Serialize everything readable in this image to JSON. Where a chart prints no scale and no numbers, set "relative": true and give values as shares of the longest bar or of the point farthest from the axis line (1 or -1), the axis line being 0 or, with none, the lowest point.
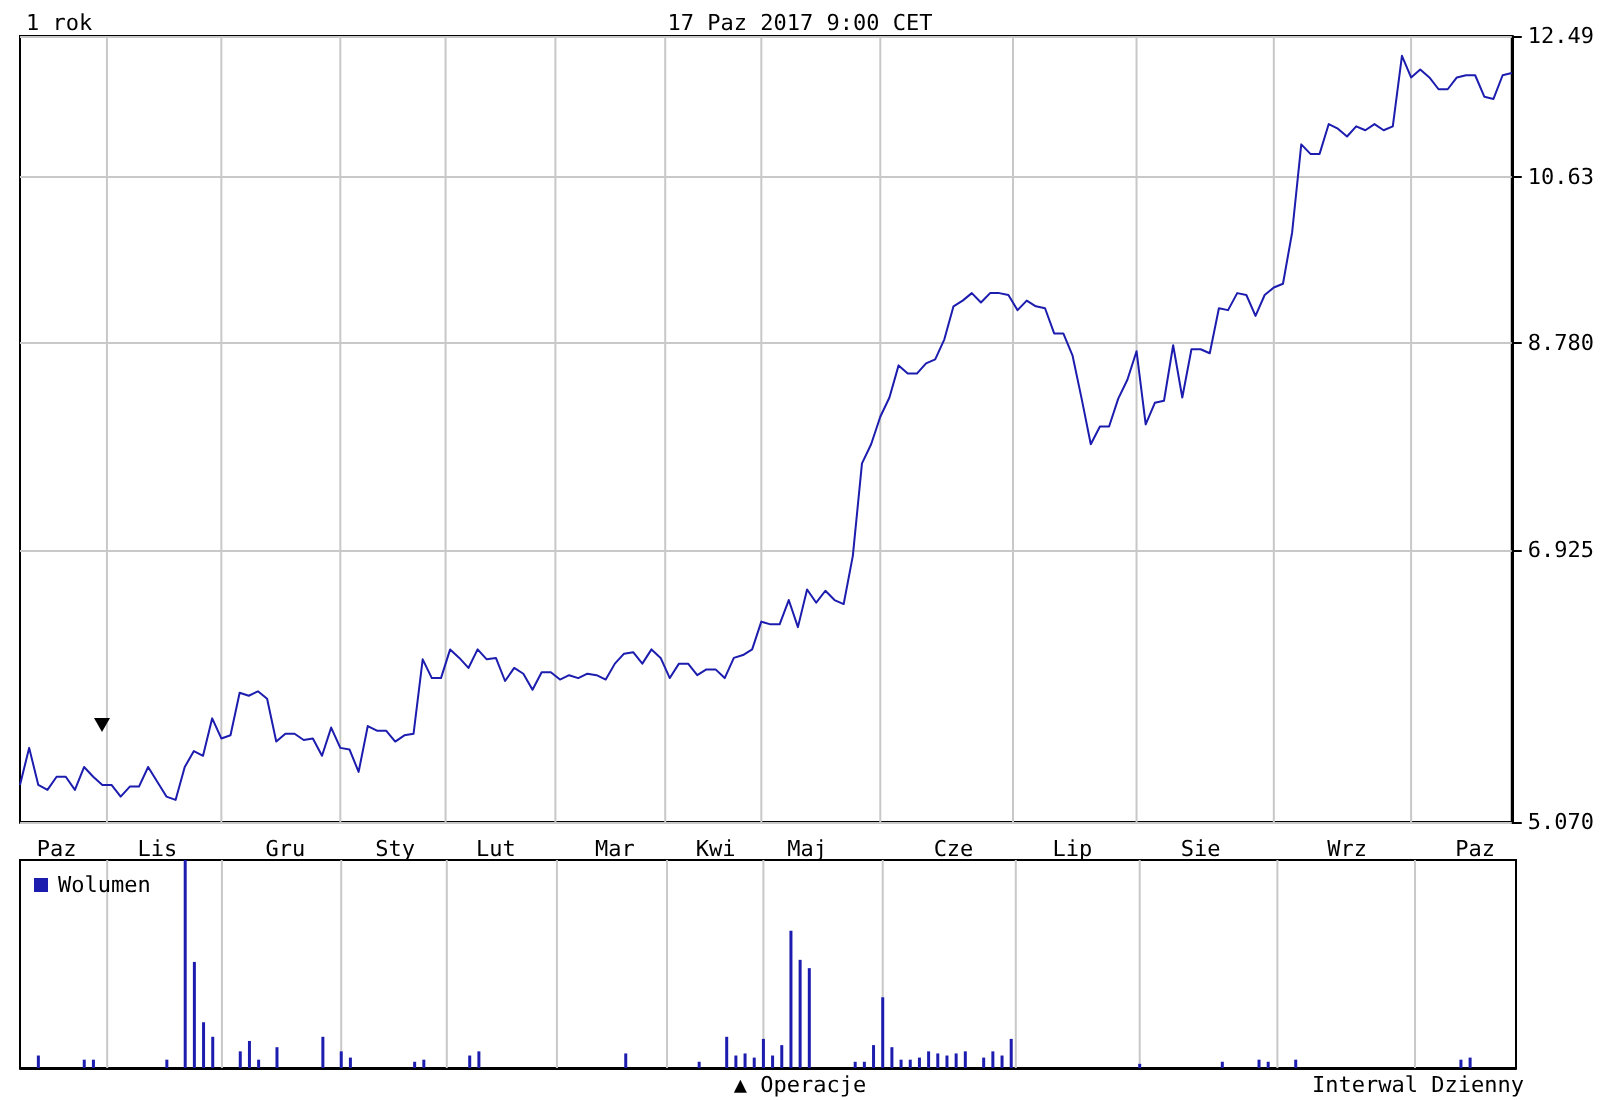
{
  "chart_data": [
    {
      "type": "line",
      "title": "1 rok",
      "subtitle": "17 Paz 2017 9:00 CET",
      "color": "#1c1cae",
      "log": true,
      "grid": true,
      "marker": "none",
      "categories": [
        null,
        null,
        null,
        null,
        "Paz",
        null,
        null,
        null,
        null,
        null,
        null,
        null,
        null,
        null,
        null,
        "Lis",
        null,
        null,
        null,
        null,
        null,
        null,
        null,
        null,
        null,
        null,
        null,
        null,
        null,
        "Gru",
        null,
        null,
        null,
        null,
        null,
        null,
        null,
        null,
        null,
        null,
        null,
        "Sty",
        null,
        null,
        null,
        null,
        null,
        null,
        null,
        null,
        null,
        null,
        "Lut",
        null,
        null,
        null,
        null,
        null,
        null,
        null,
        null,
        null,
        null,
        null,
        null,
        "Mar",
        null,
        null,
        null,
        null,
        null,
        null,
        null,
        null,
        null,
        null,
        "Kwi",
        null,
        null,
        null,
        null,
        null,
        null,
        null,
        null,
        null,
        "Maj",
        null,
        null,
        null,
        null,
        null,
        null,
        null,
        null,
        null,
        null,
        null,
        null,
        null,
        null,
        null,
        "Cze",
        null,
        null,
        null,
        null,
        null,
        null,
        null,
        null,
        null,
        null,
        null,
        null,
        "Lip",
        null,
        null,
        null,
        null,
        null,
        null,
        null,
        null,
        null,
        null,
        null,
        null,
        null,
        "Sie",
        null,
        null,
        null,
        null,
        null,
        null,
        null,
        null,
        null,
        null,
        null,
        null,
        null,
        null,
        null,
        "Wrz",
        null,
        null,
        null,
        null,
        null,
        null,
        null,
        null,
        null,
        null,
        null,
        null,
        null,
        "Paz",
        null,
        null,
        null,
        null
      ],
      "values": [
        5.29,
        5.52,
        5.29,
        5.26,
        5.34,
        5.34,
        5.26,
        5.4,
        5.34,
        5.29,
        5.29,
        5.22,
        5.28,
        5.28,
        5.4,
        5.31,
        5.22,
        5.2,
        5.4,
        5.5,
        5.47,
        5.71,
        5.58,
        5.6,
        5.88,
        5.86,
        5.89,
        5.84,
        5.56,
        5.61,
        5.61,
        5.57,
        5.58,
        5.47,
        5.65,
        5.52,
        5.51,
        5.37,
        5.66,
        5.63,
        5.63,
        5.56,
        5.6,
        5.61,
        6.11,
        5.98,
        5.98,
        6.18,
        6.12,
        6.05,
        6.18,
        6.11,
        6.12,
        5.96,
        6.05,
        6.01,
        5.9,
        6.02,
        6.02,
        5.97,
        6.0,
        5.98,
        6.01,
        6.0,
        5.97,
        6.08,
        6.15,
        6.16,
        6.08,
        6.18,
        6.12,
        5.98,
        6.08,
        6.08,
        6.0,
        6.04,
        6.04,
        5.98,
        6.12,
        6.14,
        6.18,
        6.38,
        6.36,
        6.36,
        6.54,
        6.34,
        6.62,
        6.52,
        6.61,
        6.54,
        6.51,
        6.88,
        7.65,
        7.82,
        8.07,
        8.25,
        8.56,
        8.48,
        8.48,
        8.58,
        8.62,
        8.82,
        9.16,
        9.22,
        9.3,
        9.2,
        9.3,
        9.3,
        9.28,
        9.12,
        9.22,
        9.16,
        9.14,
        8.88,
        8.88,
        8.66,
        8.24,
        7.82,
        7.98,
        7.98,
        8.24,
        8.42,
        8.7,
        8.0,
        8.2,
        8.22,
        8.76,
        8.25,
        8.72,
        8.72,
        8.68,
        9.14,
        9.12,
        9.3,
        9.28,
        9.06,
        9.28,
        9.36,
        9.4,
        9.97,
        11.03,
        10.91,
        10.91,
        11.29,
        11.23,
        11.13,
        11.26,
        11.21,
        11.29,
        11.21,
        11.26,
        12.21,
        11.91,
        12.02,
        11.91,
        11.75,
        11.75,
        11.91,
        11.94,
        11.94,
        11.65,
        11.62,
        11.94,
        11.97
      ],
      "ylim": [
        5.07,
        12.49
      ],
      "yticks": [
        {
          "value": 5.07,
          "label": "5.070"
        },
        {
          "value": 6.925,
          "label": "6.925"
        },
        {
          "value": 8.78,
          "label": "8.780"
        },
        10.63,
        12.49
      ]
    },
    {
      "type": "bar",
      "relative": true,
      "legend": "top left",
      "grid": "x",
      "annotations": [
        "▲ Operacje",
        "Interwal Dzienny"
      ],
      "categories": [
        null,
        null,
        null,
        null,
        null,
        null,
        null,
        null,
        null,
        null,
        null,
        null,
        null,
        null,
        null,
        null,
        null,
        null,
        null,
        null,
        null,
        null,
        null,
        null,
        null,
        null,
        null,
        null,
        null,
        null,
        null,
        null,
        null,
        null,
        null,
        null,
        null,
        null,
        null,
        null,
        null,
        null,
        null,
        null,
        null,
        null,
        null,
        null,
        null,
        null,
        null,
        null,
        null,
        null,
        null,
        null,
        null,
        null,
        null,
        null,
        null,
        null,
        null,
        null,
        null,
        null,
        null,
        null,
        null,
        null,
        null,
        null,
        null,
        null,
        null,
        null,
        null,
        null,
        null,
        null,
        null,
        null,
        null,
        null,
        null,
        null,
        null,
        null,
        null,
        null,
        null,
        null,
        null,
        null,
        null,
        null,
        null,
        null,
        null,
        null,
        null,
        null,
        null,
        null,
        null,
        null,
        null,
        null,
        null,
        null,
        null,
        null,
        null,
        null,
        null,
        null,
        null,
        null,
        null,
        null,
        null,
        null,
        null,
        null,
        null,
        null,
        null,
        null,
        null,
        null,
        null,
        null,
        null,
        null,
        null,
        null,
        null,
        null,
        null,
        null,
        null,
        null,
        null,
        null,
        null,
        null,
        null,
        null,
        null,
        null,
        null,
        null,
        null,
        null,
        null,
        null,
        null,
        null,
        null,
        null,
        null,
        null,
        null,
        null
      ],
      "series": [
        {
          "name": "Wolumen",
          "color": "#1c1cae",
          "values": [
            null,
            null,
            0.06,
            null,
            null,
            null,
            null,
            0.04,
            0.04,
            null,
            null,
            null,
            null,
            null,
            null,
            null,
            0.04,
            null,
            1,
            0.51,
            0.22,
            0.15,
            null,
            null,
            0.08,
            0.13,
            0.04,
            null,
            0.1,
            null,
            null,
            null,
            null,
            0.15,
            null,
            0.08,
            0.05,
            null,
            null,
            null,
            null,
            null,
            null,
            0.03,
            0.04,
            null,
            null,
            null,
            null,
            0.06,
            0.08,
            null,
            null,
            null,
            null,
            null,
            null,
            null,
            null,
            null,
            null,
            null,
            null,
            null,
            null,
            null,
            0.07,
            null,
            null,
            null,
            null,
            null,
            null,
            null,
            0.03,
            null,
            null,
            0.15,
            0.06,
            0.07,
            0.05,
            0.14,
            0.06,
            0.11,
            0.66,
            0.52,
            0.48,
            null,
            null,
            null,
            null,
            0.03,
            0.03,
            0.11,
            0.34,
            0.1,
            0.04,
            0.04,
            0.05,
            0.08,
            0.07,
            0.06,
            0.07,
            0.08,
            null,
            0.05,
            0.08,
            0.06,
            0.14,
            null,
            null,
            null,
            null,
            null,
            null,
            null,
            null,
            null,
            null,
            null,
            null,
            null,
            0.02,
            null,
            null,
            null,
            null,
            null,
            null,
            null,
            null,
            0.03,
            null,
            null,
            null,
            0.04,
            0.03,
            null,
            null,
            0.04,
            null,
            null,
            null,
            null,
            null,
            null,
            null,
            null,
            null,
            null,
            null,
            null,
            null,
            null,
            null,
            null,
            null,
            0.04,
            0.05,
            null,
            null,
            null,
            null,
            null
          ]
        }
      ]
    }
  ]
}
